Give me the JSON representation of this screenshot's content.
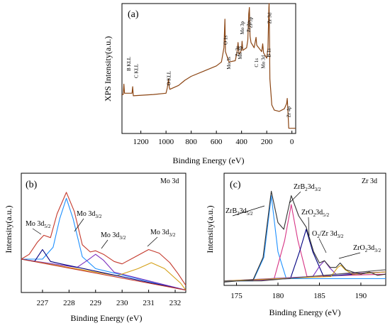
{
  "chart_data": [
    {
      "type": "line",
      "panel_label": "(a)",
      "xlabel": "Binding Energy (eV)",
      "ylabel": "XPS Intensity(a.u.)",
      "xlim": [
        1350,
        -30
      ],
      "ticks": [
        1200,
        1000,
        800,
        600,
        400,
        200,
        0
      ],
      "tick_labels": [
        "1200",
        "1000",
        "800",
        "600",
        "400",
        "200",
        "0"
      ],
      "series": [
        {
          "color": "#8b4513",
          "points": [
            [
              1350,
              0.3
            ],
            [
              1340,
              0.3
            ],
            [
              1335,
              0.38
            ],
            [
              1330,
              0.31
            ],
            [
              1270,
              0.31
            ],
            [
              1265,
              0.36
            ],
            [
              1260,
              0.29
            ],
            [
              1100,
              0.3
            ],
            [
              1000,
              0.31
            ],
            [
              990,
              0.35
            ],
            [
              980,
              0.42
            ],
            [
              975,
              0.36
            ],
            [
              970,
              0.34
            ],
            [
              900,
              0.37
            ],
            [
              850,
              0.41
            ],
            [
              800,
              0.44
            ],
            [
              700,
              0.48
            ],
            [
              600,
              0.52
            ],
            [
              560,
              0.55
            ],
            [
              540,
              0.66
            ],
            [
              532,
              0.88
            ],
            [
              528,
              0.63
            ],
            [
              500,
              0.55
            ],
            [
              450,
              0.56
            ],
            [
              435,
              0.63
            ],
            [
              428,
              0.7
            ],
            [
              420,
              0.61
            ],
            [
              410,
              0.62
            ],
            [
              400,
              0.65
            ],
            [
              396,
              0.71
            ],
            [
              390,
              0.64
            ],
            [
              360,
              0.66
            ],
            [
              350,
              0.72
            ],
            [
              343,
              0.92
            ],
            [
              338,
              0.97
            ],
            [
              333,
              0.75
            ],
            [
              325,
              0.7
            ],
            [
              300,
              0.66
            ],
            [
              285,
              0.74
            ],
            [
              280,
              0.68
            ],
            [
              240,
              0.63
            ],
            [
              232,
              0.69
            ],
            [
              225,
              0.62
            ],
            [
              200,
              0.58
            ],
            [
              190,
              0.66
            ],
            [
              183,
              0.97
            ],
            [
              181,
              1.0
            ],
            [
              178,
              0.72
            ],
            [
              175,
              0.42
            ],
            [
              160,
              0.22
            ],
            [
              140,
              0.18
            ],
            [
              100,
              0.17
            ],
            [
              60,
              0.19
            ],
            [
              42,
              0.23
            ],
            [
              37,
              0.27
            ],
            [
              33,
              0.2
            ],
            [
              25,
              0.04
            ],
            [
              -30,
              0.04
            ]
          ]
        }
      ],
      "annotations": [
        {
          "text": "B KLL",
          "x": 1300
        },
        {
          "text": "C KLL",
          "x": 1240
        },
        {
          "text": "O KLL",
          "x": 980
        },
        {
          "text": "O 1s",
          "x": 530
        },
        {
          "text": "Mo 3s",
          "x": 506
        },
        {
          "text": "Zr 3s",
          "x": 438
        },
        {
          "text": "Mo 3p",
          "x": 414
        },
        {
          "text": "Mo 3p",
          "x": 398
        },
        {
          "text": "Zr 3p",
          "x": 348
        },
        {
          "text": "Zr 3p",
          "x": 333
        },
        {
          "text": "C 1s",
          "x": 285
        },
        {
          "text": "Mo 3d",
          "x": 232
        },
        {
          "text": "Zr 3d",
          "x": 181
        },
        {
          "text": "B 1s",
          "x": 188
        },
        {
          "text": "Zr 4p",
          "x": 30
        }
      ]
    },
    {
      "type": "line",
      "panel_label": "(b)",
      "element_label": "Mo 3d",
      "xlabel": "Binding Energy (eV)",
      "ylabel": "Intensity(a.u.)",
      "xlim": [
        226.2,
        232.4
      ],
      "ticks": [
        227,
        228,
        229,
        230,
        231,
        232
      ],
      "tick_labels": [
        "227",
        "228",
        "229",
        "230",
        "231",
        "232"
      ],
      "series": [
        {
          "color": "#1e90ff",
          "points": [
            [
              226.2,
              0.28
            ],
            [
              227.0,
              0.28
            ],
            [
              227.4,
              0.38
            ],
            [
              227.65,
              0.62
            ],
            [
              227.9,
              0.79
            ],
            [
              228.15,
              0.62
            ],
            [
              228.5,
              0.3
            ],
            [
              229.0,
              0.2
            ],
            [
              232.4,
              0.02
            ]
          ]
        },
        {
          "color": "#7b2fbe",
          "points": [
            [
              226.2,
              0.28
            ],
            [
              228.3,
              0.21
            ],
            [
              228.7,
              0.27
            ],
            [
              229.0,
              0.32
            ],
            [
              229.3,
              0.27
            ],
            [
              229.7,
              0.17
            ],
            [
              232.4,
              0.02
            ]
          ]
        },
        {
          "color": "#d4a017",
          "points": [
            [
              226.2,
              0.28
            ],
            [
              229.8,
              0.14
            ],
            [
              230.6,
              0.2
            ],
            [
              231.1,
              0.25
            ],
            [
              231.6,
              0.2
            ],
            [
              232.2,
              0.08
            ],
            [
              232.4,
              0.02
            ]
          ]
        },
        {
          "color": "#000080",
          "points": [
            [
              226.2,
              0.28
            ],
            [
              226.7,
              0.26
            ],
            [
              227.0,
              0.36
            ],
            [
              227.3,
              0.26
            ],
            [
              227.7,
              0.24
            ],
            [
              232.4,
              0.02
            ]
          ]
        },
        {
          "color": "#c4392c",
          "points": [
            [
              226.2,
              0.28
            ],
            [
              226.5,
              0.32
            ],
            [
              226.8,
              0.42
            ],
            [
              227.05,
              0.48
            ],
            [
              227.3,
              0.46
            ],
            [
              227.55,
              0.66
            ],
            [
              227.9,
              0.84
            ],
            [
              228.2,
              0.68
            ],
            [
              228.5,
              0.4
            ],
            [
              228.8,
              0.34
            ],
            [
              229.0,
              0.35
            ],
            [
              229.3,
              0.32
            ],
            [
              229.7,
              0.26
            ],
            [
              230.0,
              0.24
            ],
            [
              230.5,
              0.3
            ],
            [
              231.0,
              0.36
            ],
            [
              231.4,
              0.33
            ],
            [
              231.8,
              0.25
            ],
            [
              232.1,
              0.16
            ],
            [
              232.4,
              0.06
            ]
          ]
        },
        {
          "color": "#c4392c",
          "points": [
            [
              226.2,
              0.28
            ],
            [
              232.4,
              0.02
            ]
          ]
        }
      ],
      "annotations": [
        {
          "text": "Mo 3d",
          "sub": "5/2",
          "x": 227.0
        },
        {
          "text": "Mo 3d",
          "sub": "3/2",
          "x": 228.0
        },
        {
          "text": "Mo 3d",
          "sub": "3/2",
          "x": 229.0
        },
        {
          "text": "Mo 3d",
          "sub": "3/2",
          "x": 231.0
        }
      ]
    },
    {
      "type": "line",
      "panel_label": "(c)",
      "element_label": "Zr 3d",
      "xlabel": "Binding Energy (eV)",
      "ylabel": "Intensity(a.u.)",
      "xlim": [
        173.5,
        193
      ],
      "ticks": [
        175,
        180,
        185,
        190
      ],
      "tick_labels": [
        "175",
        "180",
        "185",
        "190"
      ],
      "series": [
        {
          "color": "#1e90ff",
          "points": [
            [
              173.5,
              0.04
            ],
            [
              177,
              0.04
            ],
            [
              178.3,
              0.25
            ],
            [
              179.2,
              0.8
            ],
            [
              180.0,
              0.3
            ],
            [
              181,
              0.06
            ],
            [
              193,
              0.06
            ]
          ]
        },
        {
          "color": "#d63384",
          "points": [
            [
              173.5,
              0.04
            ],
            [
              179.5,
              0.05
            ],
            [
              180.8,
              0.4
            ],
            [
              181.6,
              0.72
            ],
            [
              182.4,
              0.4
            ],
            [
              183.5,
              0.08
            ],
            [
              193,
              0.1
            ]
          ]
        },
        {
          "color": "#000080",
          "points": [
            [
              173.5,
              0.04
            ],
            [
              181.5,
              0.06
            ],
            [
              182.6,
              0.3
            ],
            [
              183.4,
              0.5
            ],
            [
              184.2,
              0.3
            ],
            [
              185.5,
              0.08
            ],
            [
              193,
              0.12
            ]
          ]
        },
        {
          "color": "#7b2fbe",
          "points": [
            [
              173.5,
              0.04
            ],
            [
              184.2,
              0.08
            ],
            [
              185.1,
              0.18
            ],
            [
              185.6,
              0.22
            ],
            [
              186.2,
              0.16
            ],
            [
              187,
              0.1
            ],
            [
              193,
              0.12
            ]
          ]
        },
        {
          "color": "#d4a017",
          "points": [
            [
              173.5,
              0.04
            ],
            [
              186.4,
              0.08
            ],
            [
              187.2,
              0.16
            ],
            [
              187.6,
              0.18
            ],
            [
              188.1,
              0.14
            ],
            [
              189,
              0.1
            ],
            [
              193,
              0.12
            ]
          ]
        },
        {
          "color": "#333333",
          "points": [
            [
              173.5,
              0.03
            ],
            [
              177,
              0.05
            ],
            [
              178.2,
              0.25
            ],
            [
              179.2,
              0.84
            ],
            [
              180.0,
              0.56
            ],
            [
              180.7,
              0.5
            ],
            [
              181.6,
              0.8
            ],
            [
              182.5,
              0.62
            ],
            [
              183.4,
              0.52
            ],
            [
              184.3,
              0.3
            ],
            [
              185.0,
              0.2
            ],
            [
              185.6,
              0.22
            ],
            [
              186.3,
              0.16
            ],
            [
              187.0,
              0.16
            ],
            [
              187.5,
              0.2
            ],
            [
              188.2,
              0.14
            ],
            [
              189,
              0.12
            ],
            [
              190,
              0.1
            ],
            [
              191,
              0.12
            ],
            [
              192,
              0.09
            ],
            [
              193,
              0.1
            ]
          ]
        },
        {
          "color": "#555555",
          "points": [
            [
              173.5,
              0.04
            ],
            [
              178,
              0.04
            ],
            [
              193,
              0.14
            ]
          ]
        }
      ],
      "annotations": [
        {
          "text": "ZrB",
          "sub": "2",
          "text2": "3d",
          "sub2": "5/2",
          "x": 179.2
        },
        {
          "text": "ZrB",
          "sub": "2",
          "text2": "3d",
          "sub2": "3/2",
          "x": 181.6
        },
        {
          "text": "ZrO",
          "sub": "2",
          "text2": "3d",
          "sub2": "5/2",
          "x": 183.4
        },
        {
          "text": "O",
          "sub": "2",
          "text2": "/Zr 3d",
          "sub2": "3/2",
          "x": 185.6
        },
        {
          "text": "ZrO",
          "sub": "2",
          "text2": "3d",
          "sub2": "3/2",
          "x": 187.6
        }
      ]
    }
  ]
}
